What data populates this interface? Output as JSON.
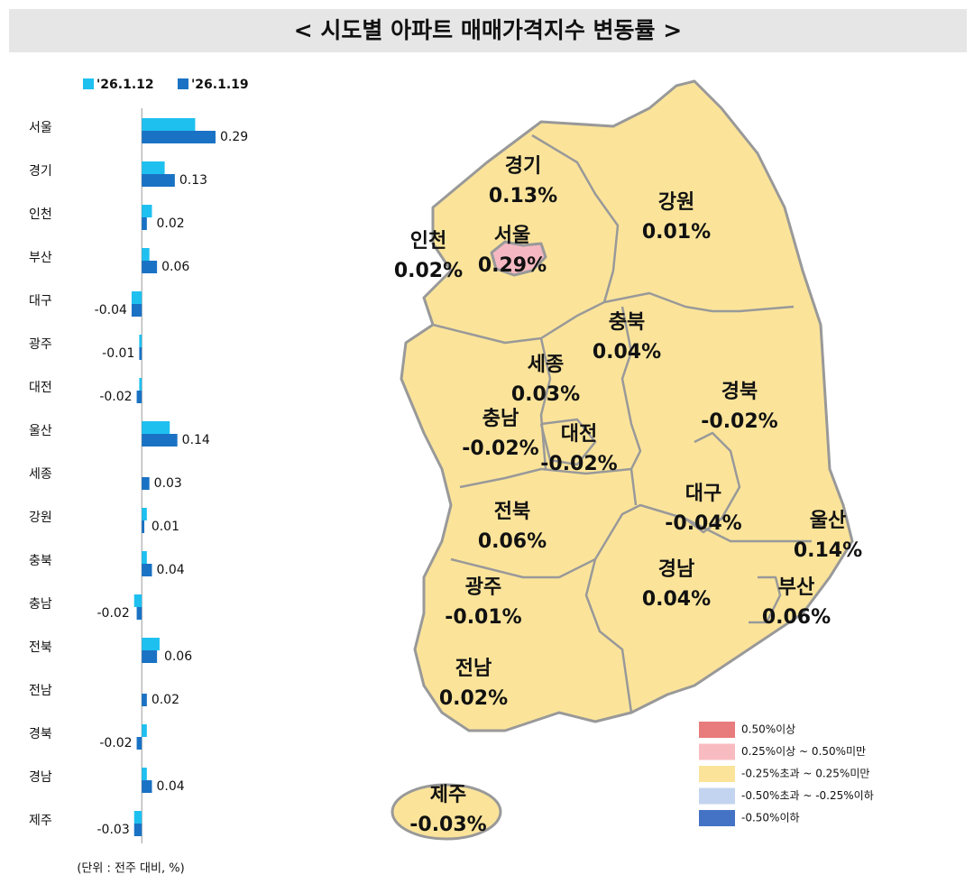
{
  "header": {
    "title": "< 시도별 아파트 매매가격지수 변동률 >"
  },
  "chart_data": {
    "type": "hbar",
    "categories": [
      "서울",
      "경기",
      "인천",
      "부산",
      "대구",
      "광주",
      "대전",
      "울산",
      "세종",
      "강원",
      "충북",
      "충남",
      "전북",
      "전남",
      "경북",
      "경남",
      "제주"
    ],
    "series": [
      {
        "name": "'26.1.12",
        "color": "#1ec0f0",
        "values": [
          0.21,
          0.09,
          0.04,
          0.03,
          -0.04,
          -0.01,
          -0.01,
          0.11,
          0.0,
          0.02,
          0.02,
          -0.03,
          0.07,
          0.0,
          0.02,
          0.02,
          -0.03
        ]
      },
      {
        "name": "'26.1.19",
        "color": "#1a72c4",
        "values": [
          0.29,
          0.13,
          0.02,
          0.06,
          -0.04,
          -0.01,
          -0.02,
          0.14,
          0.03,
          0.01,
          0.04,
          -0.02,
          0.06,
          0.02,
          -0.02,
          0.04,
          -0.03
        ]
      }
    ],
    "xlim": [
      -0.1,
      0.4
    ],
    "note": "(단위 : 전주 대비, %)"
  },
  "map": {
    "regions": [
      {
        "name": "경기",
        "label": "0.13%"
      },
      {
        "name": "강원",
        "label": "0.01%"
      },
      {
        "name": "인천",
        "label": "0.02%"
      },
      {
        "name": "서울",
        "label": "0.29%"
      },
      {
        "name": "충북",
        "label": "0.04%"
      },
      {
        "name": "세종",
        "label": "0.03%"
      },
      {
        "name": "충남",
        "label": "-0.02%"
      },
      {
        "name": "대전",
        "label": "-0.02%"
      },
      {
        "name": "경북",
        "label": "-0.02%"
      },
      {
        "name": "대구",
        "label": "-0.04%"
      },
      {
        "name": "울산",
        "label": "0.14%"
      },
      {
        "name": "전북",
        "label": "0.06%"
      },
      {
        "name": "경남",
        "label": "0.04%"
      },
      {
        "name": "부산",
        "label": "0.06%"
      },
      {
        "name": "광주",
        "label": "-0.01%"
      },
      {
        "name": "전남",
        "label": "0.02%"
      },
      {
        "name": "제주",
        "label": "-0.03%"
      }
    ],
    "legend": [
      {
        "label": "0.50%이상",
        "color": "#e87b7b"
      },
      {
        "label": "0.25%이상 ~ 0.50%미만",
        "color": "#f8bcc0"
      },
      {
        "label": "-0.25%초과 ~ 0.25%미만",
        "color": "#fbe49a"
      },
      {
        "label": "-0.50%초과 ~ -0.25%이하",
        "color": "#c3d4f0"
      },
      {
        "label": "-0.50%이하",
        "color": "#4472c4"
      }
    ]
  }
}
